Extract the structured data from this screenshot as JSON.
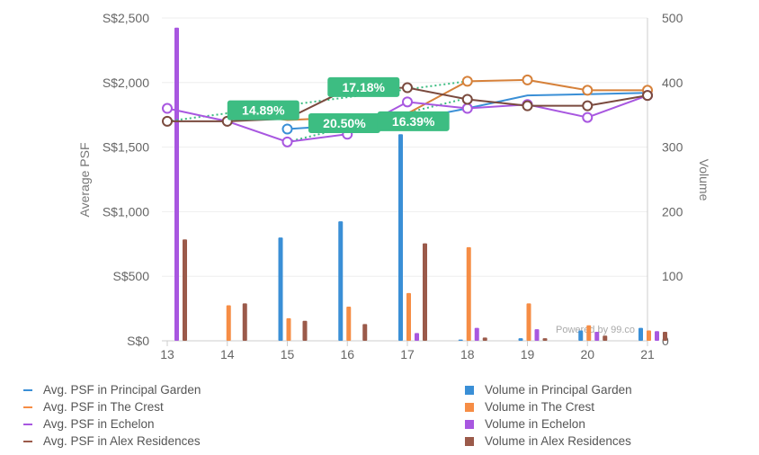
{
  "chart_data": {
    "type": "bar",
    "categories": [
      "13",
      "14",
      "15",
      "16",
      "17",
      "18",
      "19",
      "20",
      "21"
    ],
    "y_left": {
      "label": "Average PSF",
      "ylim": [
        0,
        2500
      ],
      "ticks": [
        "S$0",
        "S$500",
        "S$1,000",
        "S$1,500",
        "S$2,000",
        "S$2,500"
      ],
      "tick_values": [
        0,
        500,
        1000,
        1500,
        2000,
        2500
      ]
    },
    "y_right": {
      "label": "Volume",
      "ylim": [
        0,
        500
      ],
      "ticks": [
        "0",
        "100",
        "200",
        "300",
        "400",
        "500"
      ],
      "tick_values": [
        0,
        100,
        200,
        300,
        400,
        500
      ]
    },
    "bar_series": [
      {
        "name": "Volume in Principal Garden",
        "color": "#3a8fd6",
        "values": [
          0,
          0,
          160,
          185,
          320,
          2,
          4,
          16,
          20
        ]
      },
      {
        "name": "Volume in The Crest",
        "color": "#f68d45",
        "values": [
          0,
          55,
          35,
          53,
          74,
          145,
          58,
          24,
          16
        ]
      },
      {
        "name": "Volume in Echelon",
        "color": "#a857e0",
        "values": [
          485,
          0,
          0,
          0,
          12,
          20,
          18,
          14,
          15
        ]
      },
      {
        "name": "Volume in Alex Residences",
        "color": "#9b5a4a",
        "values": [
          157,
          58,
          31,
          26,
          151,
          5,
          4,
          8,
          14
        ]
      }
    ],
    "line_series": [
      {
        "name": "Avg. PSF in Principal Garden",
        "color": "#3a8fd6",
        "values": [
          null,
          null,
          1640,
          1670,
          1710,
          1800,
          1900,
          1910,
          1920
        ],
        "markers": [
          2
        ]
      },
      {
        "name": "Avg. PSF in The Crest",
        "color": "#d6813a",
        "values": [
          null,
          1770,
          1710,
          1730,
          1760,
          2010,
          2020,
          1940,
          1940
        ],
        "markers": [
          5,
          6,
          7,
          8
        ]
      },
      {
        "name": "Avg. PSF in Echelon",
        "color": "#a857e0",
        "values": [
          1800,
          1700,
          1540,
          1600,
          1850,
          1800,
          1830,
          1730,
          1900
        ],
        "markers": [
          0,
          2,
          3,
          4,
          5,
          6,
          7,
          8
        ]
      },
      {
        "name": "Avg. PSF in Alex Residences",
        "color": "#7a4a3e",
        "values": [
          1700,
          1700,
          1720,
          1950,
          1960,
          1870,
          1820,
          1820,
          1900
        ],
        "markers": [
          0,
          1,
          3,
          4,
          5,
          6,
          7,
          8
        ]
      }
    ],
    "trend_lines": [
      {
        "color": "#3dbd82",
        "from": [
          0,
          1700
        ],
        "to": [
          5,
          2010
        ]
      },
      {
        "color": "#3dbd82",
        "from": [
          2,
          1540
        ],
        "to": [
          5,
          1880
        ]
      }
    ],
    "callouts": [
      {
        "text": "14.89%",
        "x": 1.6,
        "y": 1785
      },
      {
        "text": "17.18%",
        "x": 3.27,
        "y": 1965
      },
      {
        "text": "20.50%",
        "x": 2.95,
        "y": 1685
      },
      {
        "text": "16.39%",
        "x": 4.1,
        "y": 1700
      }
    ],
    "watermark": "Powered by 99.co"
  },
  "legend": {
    "left": [
      {
        "label": "Avg. PSF in Principal Garden",
        "color": "#3a8fd6"
      },
      {
        "label": "Avg. PSF in The Crest",
        "color": "#f68d45"
      },
      {
        "label": "Avg. PSF in Echelon",
        "color": "#a857e0"
      },
      {
        "label": "Avg. PSF in Alex Residences",
        "color": "#9b5a4a"
      }
    ],
    "right": [
      {
        "label": "Volume in Principal Garden",
        "color": "#3a8fd6"
      },
      {
        "label": "Volume in The Crest",
        "color": "#f68d45"
      },
      {
        "label": "Volume in Echelon",
        "color": "#a857e0"
      },
      {
        "label": "Volume in Alex Residences",
        "color": "#9b5a4a"
      }
    ]
  }
}
